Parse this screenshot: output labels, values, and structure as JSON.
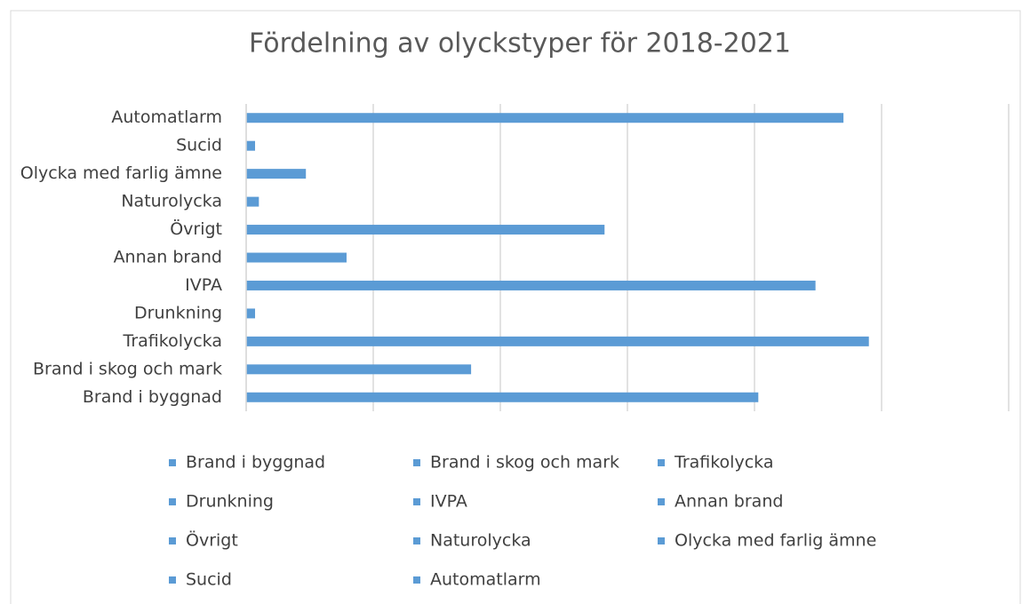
{
  "chart_data": {
    "type": "barh",
    "title": "Fördelning av olyckstyper för 2018-2021",
    "categories": [
      "Brand i byggnad",
      "Brand i skog och mark",
      "Trafikolycka",
      "Drunkning",
      "IVPA",
      "Annan brand",
      "Övrigt",
      "Naturolycka",
      "Olycka med farlig ämne",
      "Sucid",
      "Automatlarm"
    ],
    "values": [
      4.03,
      1.77,
      4.9,
      0.07,
      4.48,
      0.79,
      2.82,
      0.1,
      0.47,
      0.07,
      4.7
    ],
    "color": "#5b9bd5",
    "xlim": [
      0,
      6
    ],
    "xticks": [
      0,
      1,
      2,
      3,
      4,
      5,
      6
    ],
    "grid": true,
    "legend": "bottom"
  }
}
